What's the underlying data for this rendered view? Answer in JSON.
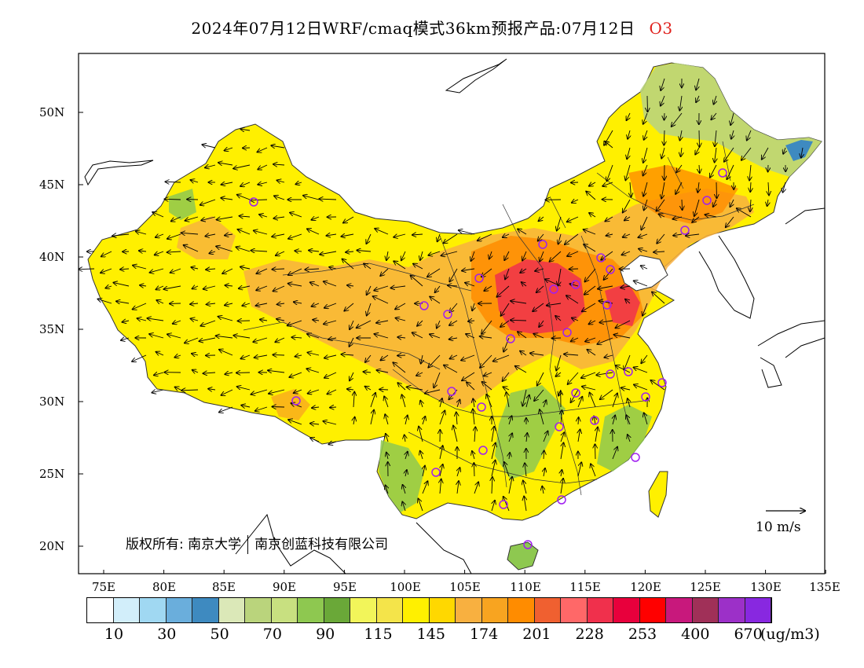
{
  "title": {
    "main": "2024年07月12日WRF/cmaq模式36km预报产品:07月12日",
    "species": "O3"
  },
  "map": {
    "lat_labels": [
      "50N",
      "45N",
      "40N",
      "35N",
      "30N",
      "25N",
      "20N"
    ],
    "lon_labels": [
      "75E",
      "80E",
      "85E",
      "90E",
      "95E",
      "100E",
      "105E",
      "110E",
      "115E",
      "120E",
      "125E",
      "130E",
      "135E"
    ],
    "copyright": "版权所有: 南京大学",
    "copyright2": "南京创蓝科技有限公司",
    "wind_scale_label": "10 m/s"
  },
  "colorbar": {
    "colors": [
      "#ffffff",
      "#d2eefa",
      "#a0d8f2",
      "#6aaedc",
      "#3e8ac0",
      "#dbe8b8",
      "#bad47c",
      "#c8e080",
      "#8ec850",
      "#6aa838",
      "#f2f55a",
      "#f4e44a",
      "#fff000",
      "#ffd800",
      "#f8b040",
      "#f8a420",
      "#ff8c00",
      "#f06030",
      "#ff6868",
      "#f0304c",
      "#e8003c",
      "#ff0000",
      "#c8187c",
      "#a03058",
      "#9c30c8",
      "#8828e0"
    ],
    "labels": [
      "10",
      "30",
      "50",
      "70",
      "90",
      "115",
      "145",
      "174",
      "201",
      "228",
      "253",
      "400",
      "670"
    ],
    "unit": "(ug/m3)"
  }
}
